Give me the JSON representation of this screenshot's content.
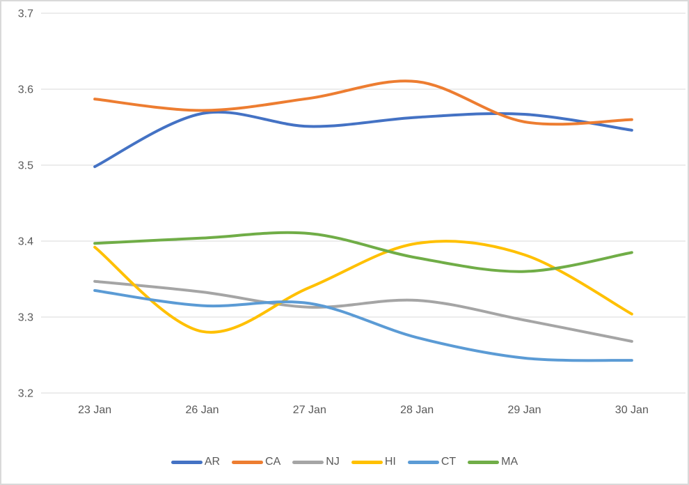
{
  "window": {
    "background": "#FFFFFF",
    "border_color": "#D9D9D9"
  },
  "chart_data": {
    "type": "line",
    "smooth": true,
    "title": "",
    "categories": [
      "23 Jan",
      "26 Jan",
      "27 Jan",
      "28 Jan",
      "29 Jan",
      "30 Jan"
    ],
    "series": [
      {
        "name": "AR",
        "color": "#4472C4",
        "values": [
          3.498,
          3.568,
          3.551,
          3.563,
          3.567,
          3.546
        ]
      },
      {
        "name": "CA",
        "color": "#ED7D31",
        "values": [
          3.587,
          3.572,
          3.588,
          3.61,
          3.557,
          3.56
        ]
      },
      {
        "name": "NJ",
        "color": "#A5A5A5",
        "values": [
          3.347,
          3.333,
          3.313,
          3.322,
          3.296,
          3.268
        ]
      },
      {
        "name": "HI",
        "color": "#FFC000",
        "values": [
          3.392,
          3.281,
          3.339,
          3.397,
          3.382,
          3.304
        ]
      },
      {
        "name": "CT",
        "color": "#5B9BD5",
        "values": [
          3.335,
          3.315,
          3.318,
          3.273,
          3.246,
          3.243
        ]
      },
      {
        "name": "MA",
        "color": "#70AD47",
        "values": [
          3.397,
          3.404,
          3.41,
          3.378,
          3.36,
          3.385
        ]
      }
    ],
    "ylim": [
      3.2,
      3.7
    ],
    "yticks": [
      "3.2",
      "3.3",
      "3.4",
      "3.5",
      "3.6",
      "3.7"
    ],
    "xlabel": "",
    "ylabel": "",
    "grid": true,
    "gridline_color": "#D9D9D9",
    "axis_text_color": "#595959",
    "legend_position": "bottom",
    "line_width": 4
  }
}
